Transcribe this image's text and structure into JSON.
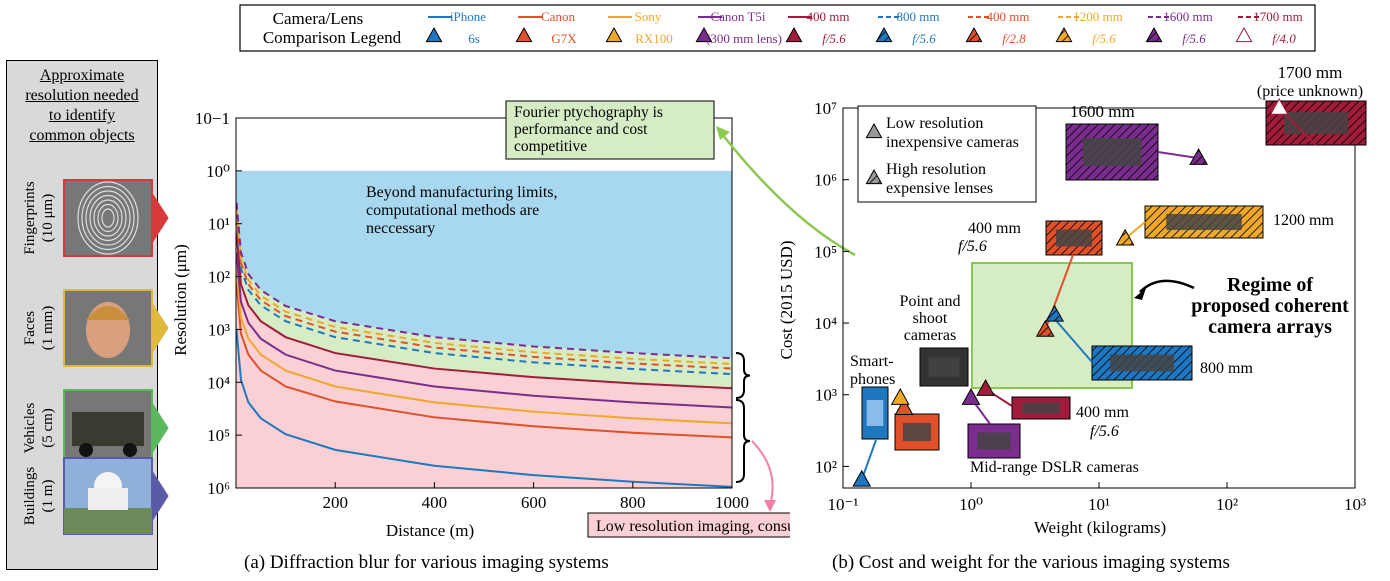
{
  "legend": {
    "title_lines": [
      "Camera/Lens",
      "Comparison Legend"
    ],
    "entries": [
      {
        "line1": "iPhone",
        "line2": "6s",
        "color": "#1f77c0",
        "dash": false,
        "hatch": false
      },
      {
        "line1": "Canon",
        "line2": "G7X",
        "color": "#e0502a",
        "dash": false,
        "hatch": false
      },
      {
        "line1": "Sony",
        "line2": "RX100",
        "color": "#f0a82a",
        "dash": false,
        "hatch": false
      },
      {
        "line1": "Canon T5i",
        "line2": "(300 mm lens)",
        "color": "#7b2d8e",
        "dash": false,
        "hatch": false
      },
      {
        "line1": "400 mm",
        "line2": "f/5.6",
        "color": "#a01c3a",
        "dash": false,
        "hatch": false
      },
      {
        "line1": "800 mm",
        "line2": "f/5.6",
        "color": "#1f77c0",
        "dash": true,
        "hatch": true
      },
      {
        "line1": "400 mm",
        "line2": "f/2.8",
        "color": "#e0502a",
        "dash": true,
        "hatch": true
      },
      {
        "line1": "1200 mm",
        "line2": "f/5.6",
        "color": "#f0a82a",
        "dash": true,
        "hatch": true
      },
      {
        "line1": "1600 mm",
        "line2": "f/5.6",
        "color": "#7b2d8e",
        "dash": true,
        "hatch": true
      },
      {
        "line1": "1700 mm",
        "line2": "f/4.0",
        "color": "#a01c3a",
        "dash": true,
        "hatch": true,
        "hollow": true
      }
    ]
  },
  "side_panel": {
    "title_lines": [
      "Approximate",
      "resolution needed",
      "to identify",
      "common objects"
    ],
    "items": [
      {
        "label_lines": [
          "Fingerprints",
          "(10 μm)"
        ],
        "color": "#d63a3a",
        "icon": "fingerprint-image"
      },
      {
        "label_lines": [
          "Faces",
          "(1 mm)"
        ],
        "color": "#e0b83c",
        "icon": "face-image"
      },
      {
        "label_lines": [
          "Vehicles",
          "(5 cm)"
        ],
        "color": "#5cb85c",
        "icon": "vehicle-image"
      },
      {
        "label_lines": [
          "Buildings",
          "(1 m)"
        ],
        "color": "#5a5aa8",
        "icon": "building-image"
      }
    ]
  },
  "chart_data": [
    {
      "type": "line",
      "caption": "(a) Diffraction blur for various imaging systems",
      "xlabel": "Distance (m)",
      "ylabel": "Resolution (μm)",
      "xlim": [
        0,
        1000
      ],
      "y_axis": "log, inverted",
      "xticks": [
        "200",
        "400",
        "600",
        "800",
        "1000"
      ],
      "yticks": [
        "10−1",
        "10⁰",
        "10¹",
        "10²",
        "10³",
        "10⁴",
        "10⁵",
        "10⁶"
      ],
      "ytick_exponents": [
        -1,
        0,
        1,
        2,
        3,
        4,
        5,
        6
      ],
      "x": [
        1,
        10,
        25,
        50,
        100,
        200,
        400,
        600,
        800,
        1000
      ],
      "series": [
        {
          "color": "#1f77c0",
          "dash": false,
          "values": [
            1000,
            9000,
            24000,
            48000,
            96000,
            190000,
            380000,
            570000,
            760000,
            950000
          ]
        },
        {
          "color": "#e0502a",
          "dash": false,
          "values": [
            130,
            1200,
            3000,
            6000,
            12000,
            23000,
            46000,
            68000,
            90000,
            110000
          ]
        },
        {
          "color": "#f0a82a",
          "dash": false,
          "values": [
            70,
            600,
            1500,
            3000,
            6000,
            12000,
            24000,
            36000,
            48000,
            60000
          ]
        },
        {
          "color": "#7b2d8e",
          "dash": false,
          "values": [
            35,
            300,
            750,
            1500,
            3000,
            6000,
            12000,
            18000,
            24000,
            30000
          ]
        },
        {
          "color": "#a01c3a",
          "dash": false,
          "values": [
            15,
            140,
            350,
            700,
            1400,
            2800,
            5500,
            8000,
            10500,
            13000
          ]
        },
        {
          "color": "#1f77c0",
          "dash": true,
          "values": [
            8,
            70,
            180,
            350,
            700,
            1400,
            2800,
            4200,
            5600,
            7000
          ]
        },
        {
          "color": "#e0502a",
          "dash": true,
          "values": [
            6.5,
            55,
            140,
            280,
            560,
            1100,
            2200,
            3300,
            4400,
            5500
          ]
        },
        {
          "color": "#f0a82a",
          "dash": true,
          "values": [
            5,
            45,
            115,
            230,
            460,
            900,
            1800,
            2700,
            3600,
            4500
          ]
        },
        {
          "color": "#7b2d8e",
          "dash": true,
          "values": [
            4,
            35,
            90,
            180,
            360,
            700,
            1400,
            2100,
            2800,
            3500
          ]
        }
      ],
      "regions": [
        {
          "label": "Beyond manufacturing limits, computational methods are neccessary",
          "color": "#a8d8f0",
          "range": [
            1,
            2800
          ]
        },
        {
          "label": "Fourier ptychography is performance and cost competitive",
          "color": "#d6ecc4",
          "range": [
            2800,
            13000
          ]
        },
        {
          "label": "Low resolution imaging, consumer cameras suffice",
          "color": "#fbd0d4",
          "range": [
            13000,
            1000000
          ]
        }
      ],
      "annotations": {
        "beyond": [
          "Beyond manufacturing limits,",
          "computational methods are",
          "neccessary"
        ],
        "fourier": [
          "Fourier ptychography is",
          "performance and cost",
          "competitive"
        ],
        "lowres": "Low resolution imaging, consumer cameras suffice"
      }
    },
    {
      "type": "scatter",
      "caption": "(b) Cost and weight for the various imaging systems",
      "xlabel": "Weight (kilograms)",
      "ylabel": "Cost (2015 USD)",
      "x_axis": "log",
      "y_axis": "log",
      "xlim": [
        0.1,
        1000
      ],
      "ylim": [
        50,
        10000000
      ],
      "xticks": [
        "10⁻¹",
        "10⁰",
        "10¹",
        "10²",
        "10³"
      ],
      "yticks": [
        "10²",
        "10³",
        "10⁴",
        "10⁵",
        "10⁶",
        "10⁷"
      ],
      "points": [
        {
          "label": "iPhone 6s",
          "weight": 0.14,
          "cost": 65,
          "color": "#1f77c0",
          "hatch": false
        },
        {
          "label": "Canon G7X",
          "weight": 0.3,
          "cost": 650,
          "color": "#e0502a",
          "hatch": false
        },
        {
          "label": "Sony RX100",
          "weight": 0.28,
          "cost": 900,
          "color": "#f0a82a",
          "hatch": false
        },
        {
          "label": "Canon T5i (300 mm lens)",
          "weight": 1.0,
          "cost": 900,
          "color": "#7b2d8e",
          "hatch": false
        },
        {
          "label": "400 mm f/5.6",
          "weight": 1.3,
          "cost": 1200,
          "color": "#a01c3a",
          "hatch": false
        },
        {
          "label": "800 mm f/5.6",
          "weight": 4.5,
          "cost": 13000,
          "color": "#1f77c0",
          "hatch": true
        },
        {
          "label": "400 mm f/2.8",
          "weight": 3.8,
          "cost": 8000,
          "color": "#e0502a",
          "hatch": true
        },
        {
          "label": "1200 mm f/5.6",
          "weight": 16,
          "cost": 150000,
          "color": "#f0a82a",
          "hatch": true
        },
        {
          "label": "1600 mm f/5.6",
          "weight": 60,
          "cost": 2000000,
          "color": "#7b2d8e",
          "hatch": true
        },
        {
          "label": "1700 mm f/4.0",
          "weight": 256,
          "cost": 10000000,
          "color": "#a01c3a",
          "hatch": true
        }
      ],
      "legend": [
        {
          "label_lines": [
            "Low resolution",
            "inexpensive cameras"
          ],
          "hatch": false
        },
        {
          "label_lines": [
            "High resolution",
            "expensive lenses"
          ],
          "hatch": true
        }
      ],
      "annotations": {
        "smartphones": [
          "Smart-",
          "phones"
        ],
        "point_shoot": [
          "Point and",
          "shoot",
          "cameras"
        ],
        "dslr": "Mid-range DSLR cameras",
        "mm400": [
          "400 mm",
          "f/5.6"
        ],
        "mm400b": [
          "400 mm",
          "f/5.6"
        ],
        "mm800": "800 mm",
        "mm1200": "1200 mm",
        "mm1600": "1600 mm",
        "mm1700": [
          "1700 mm",
          "(price unknown)"
        ],
        "regime": [
          "Regime of",
          "proposed coherent",
          "camera arrays"
        ]
      }
    }
  ]
}
